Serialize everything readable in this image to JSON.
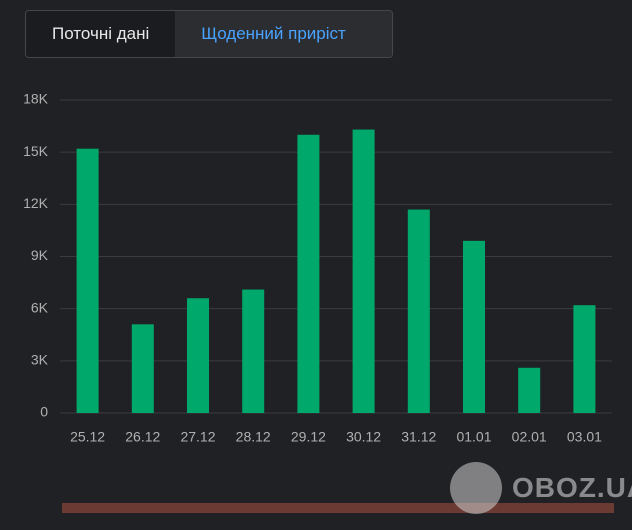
{
  "tabs": [
    {
      "label": "Поточні дані",
      "active": false
    },
    {
      "label": "Щоденний приріст",
      "active": true
    }
  ],
  "watermark": "OBOZ.UA",
  "chart_data": {
    "type": "bar",
    "categories": [
      "25.12",
      "26.12",
      "27.12",
      "28.12",
      "29.12",
      "30.12",
      "31.12",
      "01.01",
      "02.01",
      "03.01"
    ],
    "values": [
      15200,
      5100,
      6600,
      7100,
      16000,
      16300,
      11700,
      9900,
      2600,
      6200
    ],
    "color": "#00a86b",
    "ylim": [
      0,
      18000
    ],
    "yticks": [
      0,
      {
        "value": 3000,
        "label": "3K"
      },
      {
        "value": 6000,
        "label": "6K"
      },
      {
        "value": 9000,
        "label": "9K"
      },
      {
        "value": 12000,
        "label": "12K"
      },
      {
        "value": 15000,
        "label": "15K"
      },
      {
        "value": 18000,
        "label": "18K"
      }
    ],
    "grid": true
  }
}
